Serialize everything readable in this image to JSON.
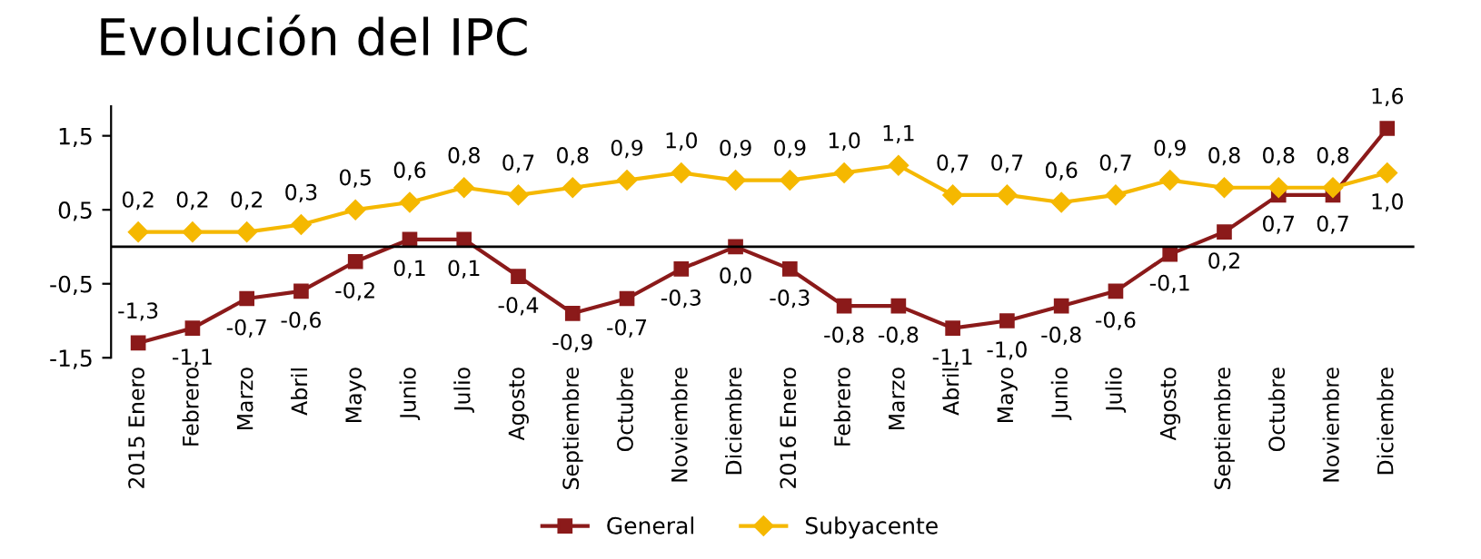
{
  "chart_data": {
    "type": "line",
    "title": "Evolución del IPC",
    "categories": [
      "2015 Enero",
      "Febrero",
      "Marzo",
      "Abril",
      "Mayo",
      "Junio",
      "Julio",
      "Agosto",
      "Septiembre",
      "Octubre",
      "Noviembre",
      "Diciembre",
      "2016 Enero",
      "Febrero",
      "Marzo",
      "Abril",
      "Mayo",
      "Junio",
      "Julio",
      "Agosto",
      "Septiembre",
      "Octubre",
      "Noviembre",
      "Diciembre"
    ],
    "series": [
      {
        "name": "General",
        "color": "#8b1a1a",
        "marker": "square",
        "values": [
          -1.3,
          -1.1,
          -0.7,
          -0.6,
          -0.2,
          0.1,
          0.1,
          -0.4,
          -0.9,
          -0.7,
          -0.3,
          0.0,
          -0.3,
          -0.8,
          -0.8,
          -1.1,
          -1.0,
          -0.8,
          -0.6,
          -0.1,
          0.2,
          0.7,
          0.7,
          1.6
        ],
        "value_labels": [
          "-1,3",
          "-1,1",
          "-0,7",
          "-0,6",
          "-0,2",
          "0,1",
          "0,1",
          "-0,4",
          "-0,9",
          "-0,7",
          "-0,3",
          "0,0",
          "-0,3",
          "-0,8",
          "-0,8",
          "-1,1",
          "-1,0",
          "-0,8",
          "-0,6",
          "-0,1",
          "0,2",
          "0,7",
          "0,7",
          "1,6"
        ]
      },
      {
        "name": "Subyacente",
        "color": "#f5b800",
        "marker": "diamond",
        "values": [
          0.2,
          0.2,
          0.2,
          0.3,
          0.5,
          0.6,
          0.8,
          0.7,
          0.8,
          0.9,
          1.0,
          0.9,
          0.9,
          1.0,
          1.1,
          0.7,
          0.7,
          0.6,
          0.7,
          0.9,
          0.8,
          0.8,
          0.8,
          1.0
        ],
        "value_labels": [
          "0,2",
          "0,2",
          "0,2",
          "0,3",
          "0,5",
          "0,6",
          "0,8",
          "0,7",
          "0,8",
          "0,9",
          "1,0",
          "0,9",
          "0,9",
          "1,0",
          "1,1",
          "0,7",
          "0,7",
          "0,6",
          "0,7",
          "0,9",
          "0,8",
          "0,8",
          "0,8",
          "1,0"
        ]
      }
    ],
    "ylim": [
      -1.5,
      1.9
    ],
    "yticks": [
      {
        "value": 1.5,
        "label": "1,5"
      },
      {
        "value": 0.5,
        "label": "0,5"
      },
      {
        "value": -0.5,
        "label": "-0,5"
      },
      {
        "value": -1.5,
        "label": "-1,5"
      }
    ],
    "ref_lines": [
      {
        "axis": "y",
        "value": 0,
        "color": "#000000"
      }
    ],
    "grid": false,
    "legend": "bottom",
    "line_style": "solid"
  }
}
